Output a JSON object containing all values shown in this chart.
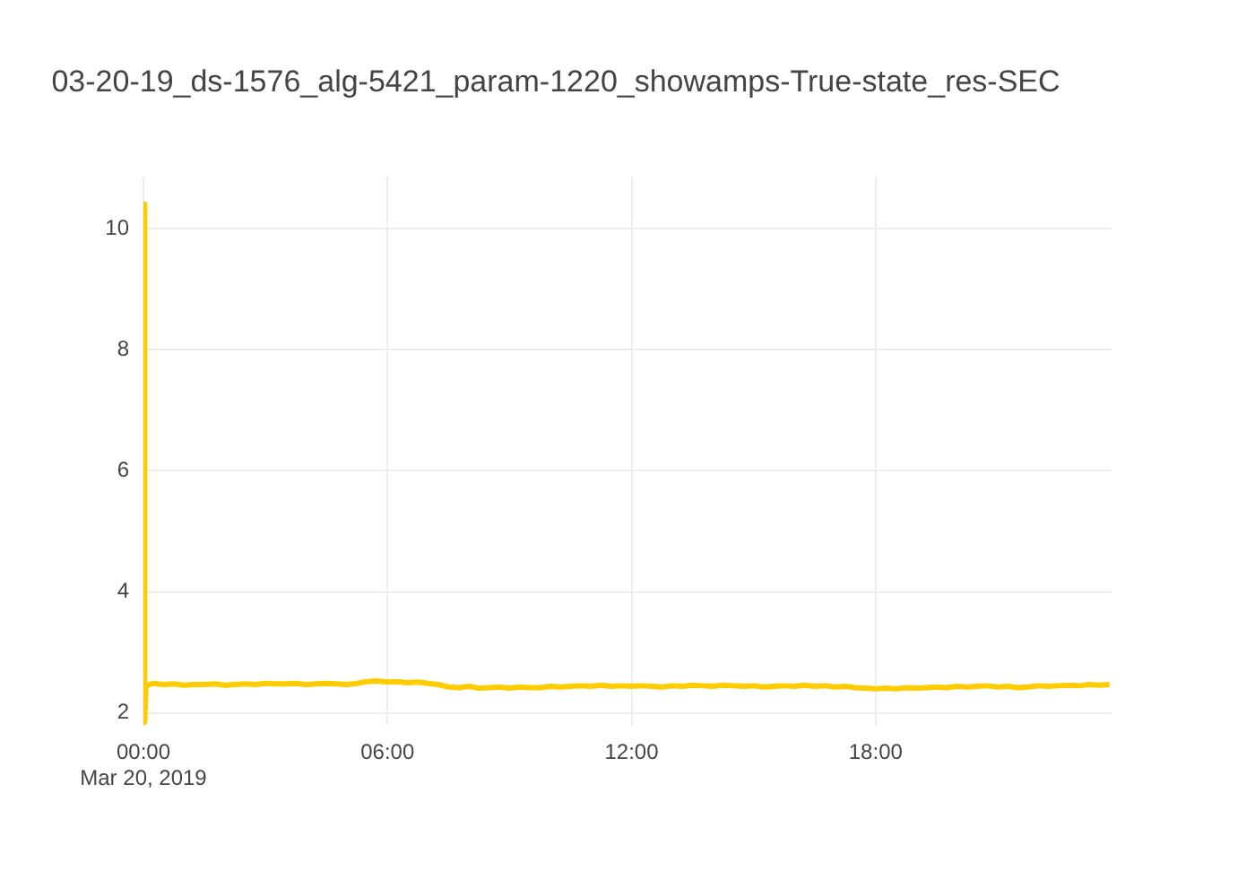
{
  "chart_data": {
    "type": "line",
    "title": "03-20-19_ds-1576_alg-5421_param-1220_showamps-True-state_res-SEC",
    "x": [
      0,
      0.02,
      0.04,
      0.06,
      0.1,
      0.25,
      0.5,
      0.75,
      1,
      1.25,
      1.5,
      1.75,
      2,
      2.25,
      2.5,
      2.75,
      3,
      3.25,
      3.5,
      3.75,
      4,
      4.25,
      4.5,
      4.75,
      5,
      5.25,
      5.5,
      5.75,
      6,
      6.25,
      6.5,
      6.75,
      7,
      7.25,
      7.5,
      7.75,
      8,
      8.25,
      8.5,
      8.75,
      9,
      9.25,
      9.5,
      9.75,
      10,
      10.25,
      10.5,
      10.75,
      11,
      11.25,
      11.5,
      11.75,
      12,
      12.25,
      12.5,
      12.75,
      13,
      13.25,
      13.5,
      13.75,
      14,
      14.25,
      14.5,
      14.75,
      15,
      15.25,
      15.5,
      15.75,
      16,
      16.25,
      16.5,
      16.75,
      17,
      17.25,
      17.5,
      17.75,
      18,
      18.25,
      18.5,
      18.75,
      19,
      19.25,
      19.5,
      19.75,
      20,
      20.25,
      20.5,
      20.75,
      21,
      21.25,
      21.5,
      21.75,
      22,
      22.25,
      22.5,
      22.75,
      23,
      23.25,
      23.5,
      23.75
    ],
    "series": [
      {
        "color": "#ffcc00",
        "values": [
          2.45,
          10.4,
          1.85,
          2.45,
          2.46,
          2.49,
          2.47,
          2.48,
          2.46,
          2.47,
          2.47,
          2.48,
          2.46,
          2.47,
          2.48,
          2.47,
          2.49,
          2.48,
          2.48,
          2.49,
          2.47,
          2.48,
          2.49,
          2.48,
          2.47,
          2.49,
          2.52,
          2.53,
          2.51,
          2.52,
          2.5,
          2.51,
          2.49,
          2.47,
          2.43,
          2.42,
          2.44,
          2.41,
          2.42,
          2.43,
          2.41,
          2.43,
          2.42,
          2.42,
          2.44,
          2.43,
          2.44,
          2.45,
          2.44,
          2.46,
          2.44,
          2.45,
          2.44,
          2.45,
          2.44,
          2.43,
          2.45,
          2.44,
          2.46,
          2.45,
          2.44,
          2.46,
          2.45,
          2.44,
          2.45,
          2.43,
          2.44,
          2.45,
          2.44,
          2.46,
          2.44,
          2.45,
          2.43,
          2.44,
          2.42,
          2.41,
          2.4,
          2.41,
          2.4,
          2.42,
          2.41,
          2.42,
          2.43,
          2.42,
          2.44,
          2.43,
          2.44,
          2.45,
          2.43,
          2.44,
          2.42,
          2.43,
          2.45,
          2.44,
          2.45,
          2.46,
          2.45,
          2.47,
          2.46,
          2.47
        ]
      }
    ],
    "xlim": [
      0,
      23.8
    ],
    "xticks": [
      {
        "value": 0,
        "label": "00:00\nMar 20, 2019"
      },
      {
        "value": 6,
        "label": "06:00"
      },
      {
        "value": 12,
        "label": "12:00"
      },
      {
        "value": 18,
        "label": "18:00"
      }
    ],
    "ylim": [
      1.79,
      10.86
    ],
    "yticks": [
      2,
      4,
      6,
      8,
      10
    ],
    "grid": true,
    "legend": false,
    "marker": "none",
    "line_style": "solid"
  }
}
